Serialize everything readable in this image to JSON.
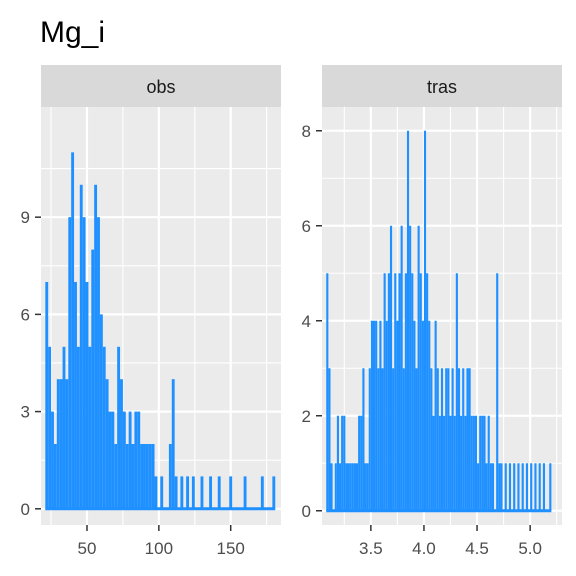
{
  "title": "Mg_i",
  "colors": {
    "histogram": "#1E90FF",
    "panel_bg": "#EBEBEB",
    "strip_bg": "#D9D9D9",
    "grid": "#FFFFFF"
  },
  "chart_data": [
    {
      "type": "histogram",
      "facet": "obs",
      "xlim": [
        18,
        185
      ],
      "ylim": [
        -0.5,
        12.4
      ],
      "xticks": [
        50,
        100,
        150
      ],
      "xtick_labels": [
        "50",
        "100",
        "150"
      ],
      "yticks": [
        0,
        3,
        6,
        9
      ],
      "ytick_labels": [
        "0",
        "3",
        "6",
        "9"
      ],
      "bins": [
        {
          "x": 22,
          "y": 7
        },
        {
          "x": 24,
          "y": 5
        },
        {
          "x": 26,
          "y": 3
        },
        {
          "x": 28,
          "y": 2
        },
        {
          "x": 30,
          "y": 4
        },
        {
          "x": 32,
          "y": 4
        },
        {
          "x": 34,
          "y": 5
        },
        {
          "x": 36,
          "y": 4
        },
        {
          "x": 38,
          "y": 9
        },
        {
          "x": 40,
          "y": 11
        },
        {
          "x": 42,
          "y": 7
        },
        {
          "x": 44,
          "y": 5
        },
        {
          "x": 46,
          "y": 10
        },
        {
          "x": 48,
          "y": 9
        },
        {
          "x": 50,
          "y": 7
        },
        {
          "x": 52,
          "y": 5
        },
        {
          "x": 54,
          "y": 8
        },
        {
          "x": 56,
          "y": 10
        },
        {
          "x": 58,
          "y": 9
        },
        {
          "x": 60,
          "y": 6
        },
        {
          "x": 62,
          "y": 5
        },
        {
          "x": 64,
          "y": 4
        },
        {
          "x": 66,
          "y": 3
        },
        {
          "x": 68,
          "y": 3
        },
        {
          "x": 70,
          "y": 2
        },
        {
          "x": 72,
          "y": 5
        },
        {
          "x": 74,
          "y": 4
        },
        {
          "x": 76,
          "y": 3
        },
        {
          "x": 78,
          "y": 2
        },
        {
          "x": 80,
          "y": 3
        },
        {
          "x": 82,
          "y": 2
        },
        {
          "x": 84,
          "y": 3
        },
        {
          "x": 86,
          "y": 3
        },
        {
          "x": 88,
          "y": 2
        },
        {
          "x": 90,
          "y": 2
        },
        {
          "x": 92,
          "y": 2
        },
        {
          "x": 94,
          "y": 2
        },
        {
          "x": 96,
          "y": 2
        },
        {
          "x": 98,
          "y": 1
        },
        {
          "x": 100,
          "y": 0
        },
        {
          "x": 102,
          "y": 1
        },
        {
          "x": 104,
          "y": 0
        },
        {
          "x": 106,
          "y": 0
        },
        {
          "x": 108,
          "y": 2
        },
        {
          "x": 110,
          "y": 4
        },
        {
          "x": 112,
          "y": 1
        },
        {
          "x": 114,
          "y": 0
        },
        {
          "x": 116,
          "y": 1
        },
        {
          "x": 118,
          "y": 0
        },
        {
          "x": 120,
          "y": 1
        },
        {
          "x": 122,
          "y": 0
        },
        {
          "x": 124,
          "y": 1
        },
        {
          "x": 126,
          "y": 0
        },
        {
          "x": 128,
          "y": 0
        },
        {
          "x": 130,
          "y": 1
        },
        {
          "x": 132,
          "y": 0
        },
        {
          "x": 134,
          "y": 0
        },
        {
          "x": 136,
          "y": 1
        },
        {
          "x": 138,
          "y": 0
        },
        {
          "x": 140,
          "y": 0
        },
        {
          "x": 142,
          "y": 1
        },
        {
          "x": 144,
          "y": 0
        },
        {
          "x": 146,
          "y": 0
        },
        {
          "x": 148,
          "y": 0
        },
        {
          "x": 150,
          "y": 1
        },
        {
          "x": 152,
          "y": 0
        },
        {
          "x": 154,
          "y": 0
        },
        {
          "x": 156,
          "y": 0
        },
        {
          "x": 158,
          "y": 0
        },
        {
          "x": 160,
          "y": 1
        },
        {
          "x": 162,
          "y": 0
        },
        {
          "x": 164,
          "y": 0
        },
        {
          "x": 166,
          "y": 0
        },
        {
          "x": 168,
          "y": 0
        },
        {
          "x": 170,
          "y": 0
        },
        {
          "x": 172,
          "y": 1
        },
        {
          "x": 174,
          "y": 0
        },
        {
          "x": 176,
          "y": 0
        },
        {
          "x": 178,
          "y": 0
        },
        {
          "x": 180,
          "y": 1
        }
      ],
      "bin_width": 2
    },
    {
      "type": "histogram",
      "facet": "tras",
      "xlim": [
        3.04,
        5.3
      ],
      "ylim": [
        -0.3,
        8.5
      ],
      "xticks": [
        3.5,
        4.0,
        4.5,
        5.0
      ],
      "xtick_labels": [
        "3.5",
        "4.0",
        "4.5",
        "5.0"
      ],
      "yticks": [
        0,
        2,
        4,
        6,
        8
      ],
      "ytick_labels": [
        "0",
        "2",
        "4",
        "6",
        "8"
      ],
      "bins": [
        {
          "x": 3.09,
          "y": 5
        },
        {
          "x": 3.11,
          "y": 3
        },
        {
          "x": 3.13,
          "y": 1
        },
        {
          "x": 3.15,
          "y": 0
        },
        {
          "x": 3.17,
          "y": 1
        },
        {
          "x": 3.19,
          "y": 2
        },
        {
          "x": 3.21,
          "y": 1
        },
        {
          "x": 3.23,
          "y": 2
        },
        {
          "x": 3.25,
          "y": 2
        },
        {
          "x": 3.27,
          "y": 1
        },
        {
          "x": 3.29,
          "y": 1
        },
        {
          "x": 3.31,
          "y": 1
        },
        {
          "x": 3.33,
          "y": 1
        },
        {
          "x": 3.35,
          "y": 1
        },
        {
          "x": 3.37,
          "y": 1
        },
        {
          "x": 3.39,
          "y": 2
        },
        {
          "x": 3.41,
          "y": 2
        },
        {
          "x": 3.43,
          "y": 3
        },
        {
          "x": 3.45,
          "y": 1
        },
        {
          "x": 3.47,
          "y": 1
        },
        {
          "x": 3.49,
          "y": 3
        },
        {
          "x": 3.51,
          "y": 4
        },
        {
          "x": 3.53,
          "y": 4
        },
        {
          "x": 3.55,
          "y": 4
        },
        {
          "x": 3.57,
          "y": 3
        },
        {
          "x": 3.59,
          "y": 4
        },
        {
          "x": 3.61,
          "y": 3
        },
        {
          "x": 3.63,
          "y": 5
        },
        {
          "x": 3.65,
          "y": 4
        },
        {
          "x": 3.67,
          "y": 5
        },
        {
          "x": 3.69,
          "y": 6
        },
        {
          "x": 3.71,
          "y": 3
        },
        {
          "x": 3.73,
          "y": 5
        },
        {
          "x": 3.75,
          "y": 4
        },
        {
          "x": 3.77,
          "y": 5
        },
        {
          "x": 3.79,
          "y": 6
        },
        {
          "x": 3.81,
          "y": 3
        },
        {
          "x": 3.83,
          "y": 5
        },
        {
          "x": 3.85,
          "y": 8
        },
        {
          "x": 3.87,
          "y": 6
        },
        {
          "x": 3.89,
          "y": 5
        },
        {
          "x": 3.91,
          "y": 4
        },
        {
          "x": 3.93,
          "y": 3
        },
        {
          "x": 3.95,
          "y": 6
        },
        {
          "x": 3.97,
          "y": 5
        },
        {
          "x": 3.99,
          "y": 4
        },
        {
          "x": 4.01,
          "y": 8
        },
        {
          "x": 4.03,
          "y": 5
        },
        {
          "x": 4.05,
          "y": 4
        },
        {
          "x": 4.07,
          "y": 3
        },
        {
          "x": 4.09,
          "y": 2
        },
        {
          "x": 4.11,
          "y": 4
        },
        {
          "x": 4.13,
          "y": 3
        },
        {
          "x": 4.15,
          "y": 2
        },
        {
          "x": 4.17,
          "y": 3
        },
        {
          "x": 4.19,
          "y": 2
        },
        {
          "x": 4.21,
          "y": 3
        },
        {
          "x": 4.23,
          "y": 3
        },
        {
          "x": 4.25,
          "y": 2
        },
        {
          "x": 4.27,
          "y": 3
        },
        {
          "x": 4.29,
          "y": 2
        },
        {
          "x": 4.31,
          "y": 5
        },
        {
          "x": 4.33,
          "y": 3
        },
        {
          "x": 4.35,
          "y": 2
        },
        {
          "x": 4.37,
          "y": 3
        },
        {
          "x": 4.39,
          "y": 2
        },
        {
          "x": 4.41,
          "y": 3
        },
        {
          "x": 4.43,
          "y": 3
        },
        {
          "x": 4.45,
          "y": 2
        },
        {
          "x": 4.47,
          "y": 2
        },
        {
          "x": 4.49,
          "y": 2
        },
        {
          "x": 4.51,
          "y": 1
        },
        {
          "x": 4.53,
          "y": 2
        },
        {
          "x": 4.55,
          "y": 2
        },
        {
          "x": 4.57,
          "y": 2
        },
        {
          "x": 4.59,
          "y": 1
        },
        {
          "x": 4.61,
          "y": 2
        },
        {
          "x": 4.63,
          "y": 1
        },
        {
          "x": 4.65,
          "y": 1
        },
        {
          "x": 4.67,
          "y": 0
        },
        {
          "x": 4.69,
          "y": 5
        },
        {
          "x": 4.71,
          "y": 1
        },
        {
          "x": 4.73,
          "y": 1
        },
        {
          "x": 4.75,
          "y": 0
        },
        {
          "x": 4.77,
          "y": 1
        },
        {
          "x": 4.79,
          "y": 0
        },
        {
          "x": 4.81,
          "y": 1
        },
        {
          "x": 4.83,
          "y": 0
        },
        {
          "x": 4.85,
          "y": 1
        },
        {
          "x": 4.87,
          "y": 0
        },
        {
          "x": 4.89,
          "y": 1
        },
        {
          "x": 4.91,
          "y": 0
        },
        {
          "x": 4.93,
          "y": 1
        },
        {
          "x": 4.95,
          "y": 0
        },
        {
          "x": 4.97,
          "y": 1
        },
        {
          "x": 4.99,
          "y": 0
        },
        {
          "x": 5.01,
          "y": 1
        },
        {
          "x": 5.03,
          "y": 0
        },
        {
          "x": 5.05,
          "y": 1
        },
        {
          "x": 5.07,
          "y": 0
        },
        {
          "x": 5.09,
          "y": 1
        },
        {
          "x": 5.11,
          "y": 0
        },
        {
          "x": 5.13,
          "y": 1
        },
        {
          "x": 5.15,
          "y": 0
        },
        {
          "x": 5.17,
          "y": 0
        },
        {
          "x": 5.19,
          "y": 1
        }
      ],
      "bin_width": 0.02
    }
  ]
}
